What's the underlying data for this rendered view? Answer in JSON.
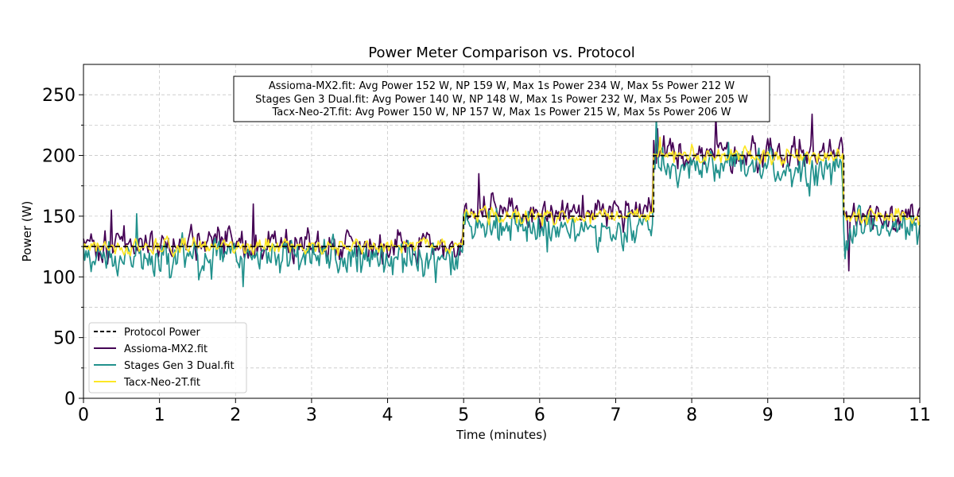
{
  "chart_data": {
    "type": "line",
    "title": "Power Meter Comparison vs. Protocol",
    "xlabel": "Time (minutes)",
    "ylabel": "Power (W)",
    "xlim": [
      0,
      11
    ],
    "ylim": [
      0,
      275
    ],
    "xticks": [
      "0",
      "1",
      "2",
      "3",
      "4",
      "5",
      "6",
      "7",
      "8",
      "9",
      "10",
      "11"
    ],
    "yticks": [
      "0",
      "50",
      "100",
      "150",
      "200",
      "250"
    ],
    "grid": true,
    "legend_position": "lower-left",
    "stats_box": [
      "Assioma-MX2.fit: Avg Power 152 W, NP 159 W, Max 1s Power 234 W, Max 5s Power 212 W",
      "Stages Gen 3 Dual.fit: Avg Power 140 W, NP 148 W, Max 1s Power 232 W, Max 5s Power 205 W",
      "Tacx-Neo-2T.fit: Avg Power 150 W, NP 157 W, Max 1s Power 215 W, Max 5s Power 206 W"
    ],
    "protocol": {
      "name": "Protocol Power",
      "color": "#000000",
      "style": "dashed",
      "steps": [
        {
          "start": 0,
          "end": 5,
          "power": 125
        },
        {
          "start": 5,
          "end": 7.5,
          "power": 150
        },
        {
          "start": 7.5,
          "end": 10,
          "power": 200
        },
        {
          "start": 10,
          "end": 11,
          "power": 150
        }
      ]
    },
    "series": [
      {
        "name": "Assioma-MX2.fit",
        "color": "#440154",
        "offset": 2,
        "noise": 6,
        "seed": 11,
        "spikes": [
          [
            0.37,
            155
          ],
          [
            2.23,
            160
          ],
          [
            5.2,
            185
          ],
          [
            5.6,
            165
          ],
          [
            6.57,
            167
          ],
          [
            7.32,
            160
          ],
          [
            7.55,
            222
          ],
          [
            8.32,
            234
          ],
          [
            9.58,
            234
          ],
          [
            10.06,
            105
          ]
        ]
      },
      {
        "name": "Stages Gen 3 Dual.fit",
        "color": "#21918c",
        "offset": -10,
        "noise": 7,
        "seed": 29,
        "spikes": [
          [
            0.7,
            152
          ],
          [
            2.1,
            92
          ],
          [
            7.53,
            232
          ],
          [
            10.02,
            115
          ]
        ]
      },
      {
        "name": "Tacx-Neo-2T.fit",
        "color": "#fde725",
        "offset": 0,
        "noise": 3,
        "seed": 47,
        "spikes": [
          [
            7.58,
            215
          ]
        ]
      }
    ]
  }
}
